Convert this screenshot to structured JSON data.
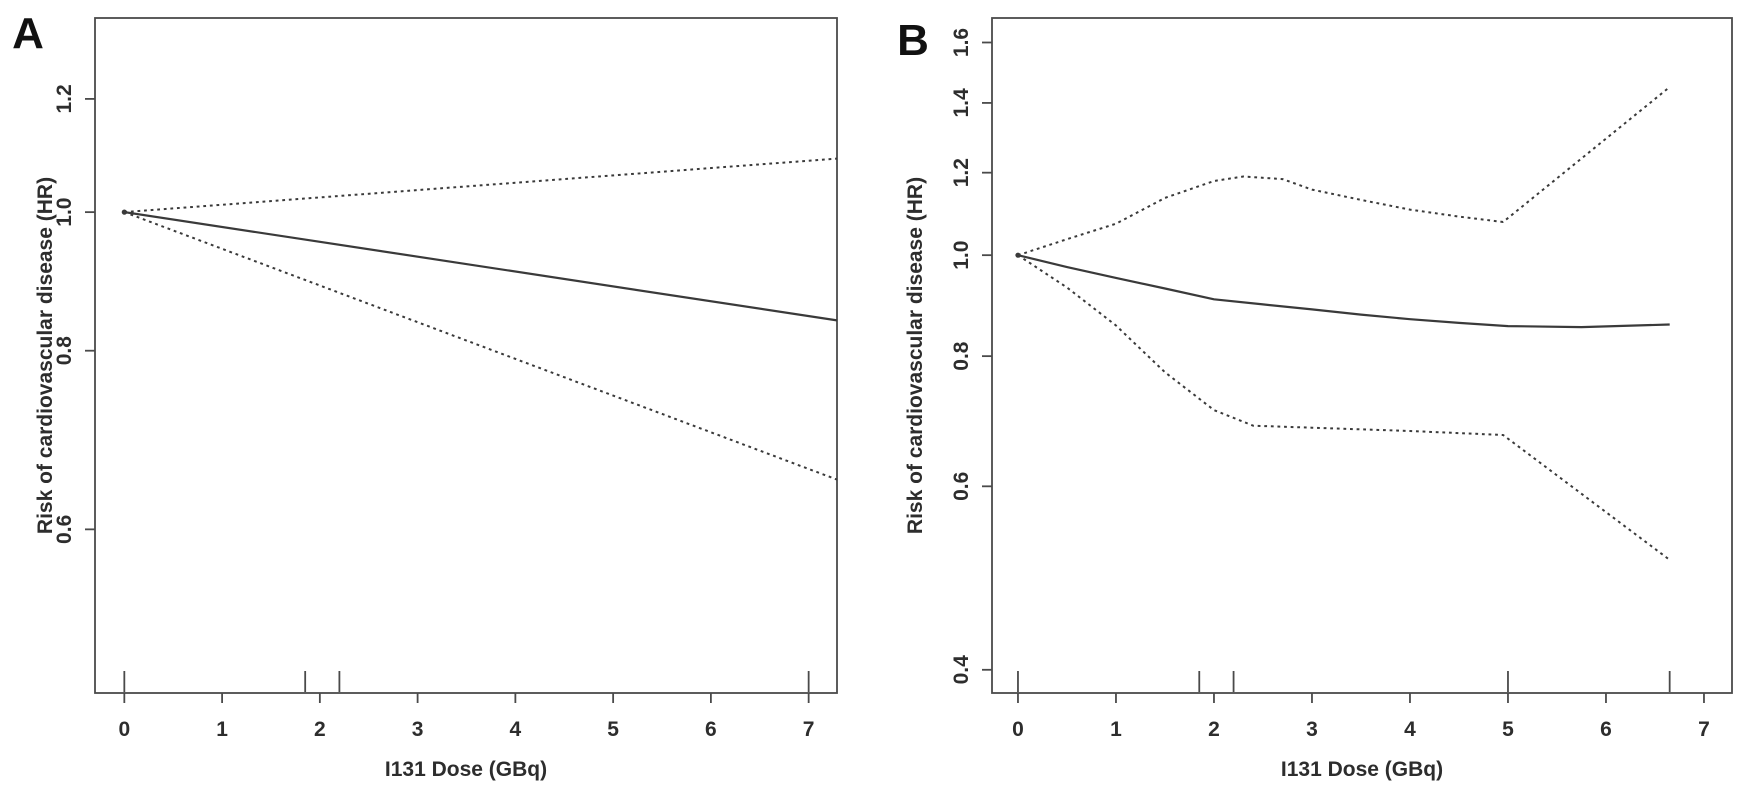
{
  "figure": {
    "background": "#ffffff",
    "line_color": "#3a3a3a",
    "axis_color": "#4a4a4a",
    "text_color": "#2d2d2d",
    "description": "Two-panel dose-response figure of risk of cardiovascular disease (hazard ratio) versus I131 dose, with solid HR estimate and dotted 95% confidence limits, log-scaled y axis, and rug marks on the x axis"
  },
  "chart_data": [
    {
      "panel_label": "A",
      "type": "line",
      "title": "",
      "xlabel": "I131 Dose (GBq)",
      "ylabel": "Risk of cardiovascular disease (HR)",
      "x_ticks": [
        0,
        1,
        2,
        3,
        4,
        5,
        6,
        7
      ],
      "y_ticks": [
        0.6,
        0.8,
        1.0,
        1.2
      ],
      "y_scale": "log",
      "xlim": [
        -0.3,
        7.29
      ],
      "ylim": [
        0.461,
        1.367
      ],
      "grid": false,
      "legend": "none",
      "rug_x": [
        0,
        1.85,
        2.2,
        7.0
      ],
      "series": [
        {
          "name": "hazard-ratio",
          "line": "solid",
          "points": [
            [
              0,
              1.0
            ],
            [
              7.29,
              0.84
            ]
          ]
        },
        {
          "name": "upper-95ci",
          "line": "dotted",
          "points": [
            [
              0,
              1.0
            ],
            [
              7.29,
              1.09
            ]
          ]
        },
        {
          "name": "lower-95ci",
          "line": "dotted",
          "points": [
            [
              0,
              1.0
            ],
            [
              7.29,
              0.65
            ]
          ]
        }
      ]
    },
    {
      "panel_label": "B",
      "type": "line",
      "title": "",
      "xlabel": "I131 Dose (GBq)",
      "ylabel": "Risk of cardiovascular disease (HR)",
      "x_ticks": [
        0,
        1,
        2,
        3,
        4,
        5,
        6,
        7
      ],
      "y_ticks": [
        0.4,
        0.6,
        0.8,
        1.0,
        1.2,
        1.4,
        1.6
      ],
      "y_scale": "log",
      "xlim": [
        -0.265,
        7.286
      ],
      "ylim": [
        0.38,
        1.689
      ],
      "grid": false,
      "legend": "none",
      "rug_x": [
        0,
        1.85,
        2.2,
        5.0,
        6.65
      ],
      "series": [
        {
          "name": "hazard-ratio",
          "line": "solid",
          "points": [
            [
              0,
              1.0
            ],
            [
              0.5,
              0.974
            ],
            [
              1,
              0.951
            ],
            [
              1.5,
              0.929
            ],
            [
              2,
              0.907
            ],
            [
              2.5,
              0.897
            ],
            [
              3,
              0.887
            ],
            [
              3.5,
              0.877
            ],
            [
              4,
              0.868
            ],
            [
              4.5,
              0.861
            ],
            [
              5,
              0.855
            ],
            [
              5.75,
              0.853
            ],
            [
              6.65,
              0.858
            ]
          ]
        },
        {
          "name": "upper-95ci",
          "line": "dotted",
          "points": [
            [
              0,
              1.0
            ],
            [
              0.5,
              1.036
            ],
            [
              1,
              1.072
            ],
            [
              1.5,
              1.135
            ],
            [
              2,
              1.178
            ],
            [
              2.3,
              1.19
            ],
            [
              2.7,
              1.183
            ],
            [
              3,
              1.156
            ],
            [
              3.5,
              1.13
            ],
            [
              4,
              1.106
            ],
            [
              4.5,
              1.089
            ],
            [
              4.95,
              1.076
            ],
            [
              6.65,
              1.45
            ]
          ]
        },
        {
          "name": "lower-95ci",
          "line": "dotted",
          "points": [
            [
              0,
              1.0
            ],
            [
              0.5,
              0.931
            ],
            [
              1,
              0.856
            ],
            [
              1.5,
              0.772
            ],
            [
              2,
              0.71
            ],
            [
              2.4,
              0.686
            ],
            [
              3,
              0.683
            ],
            [
              4,
              0.678
            ],
            [
              4.95,
              0.672
            ],
            [
              6.65,
              0.51
            ]
          ]
        }
      ]
    }
  ]
}
